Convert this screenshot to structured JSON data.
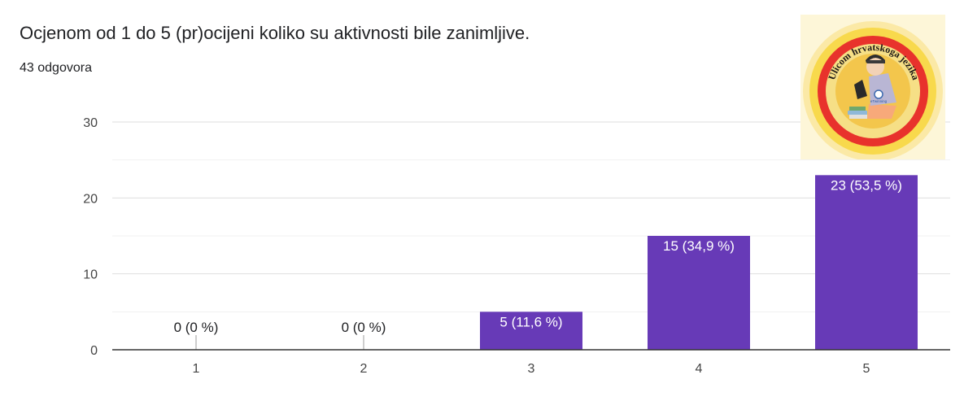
{
  "question": {
    "title": "Ocjenom od 1 do 5 (pr)ocijeni koliko su aktivnosti bile zanimljive.",
    "response_count": "43 odgovora"
  },
  "logo": {
    "text": "Ulicom hrvatskoga jezika",
    "badge_text": "eTwinning",
    "icon": "girl-reading-book-logo"
  },
  "colors": {
    "bar": "#673ab7",
    "axis": "#333333",
    "grid": "#e6e6e6",
    "text": "#202124",
    "label_light": "#ffffff"
  },
  "chart_data": {
    "type": "bar",
    "categories": [
      "1",
      "2",
      "3",
      "4",
      "5"
    ],
    "values": [
      0,
      0,
      5,
      15,
      23
    ],
    "data_labels": [
      "0 (0 %)",
      "0 (0 %)",
      "5 (11,6 %)",
      "15 (34,9 %)",
      "23 (53,5 %)"
    ],
    "ylim": [
      0,
      30
    ],
    "yticks": [
      "0",
      "10",
      "20",
      "30"
    ],
    "xlabel": "",
    "ylabel": "",
    "grid": true
  }
}
